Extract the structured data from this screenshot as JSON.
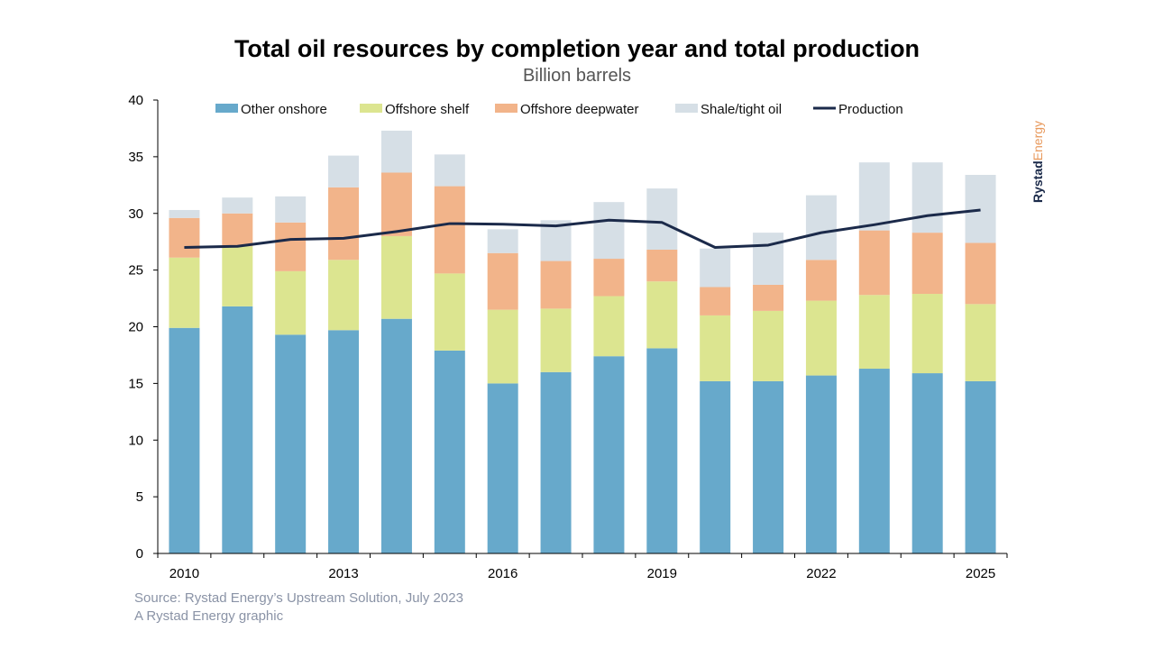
{
  "chart_data": {
    "type": "bar",
    "stacked": true,
    "title": "Total oil resources by completion year and total production",
    "subtitle": "Billion barrels",
    "xlabel": "",
    "ylabel": "",
    "ylim": [
      0,
      40
    ],
    "yticks": [
      0,
      5,
      10,
      15,
      20,
      25,
      30,
      35,
      40
    ],
    "categories": [
      2010,
      2011,
      2012,
      2013,
      2014,
      2015,
      2016,
      2017,
      2018,
      2019,
      2020,
      2021,
      2022,
      2023,
      2024,
      2025
    ],
    "xtick_labels": [
      "2010",
      "2013",
      "2016",
      "2019",
      "2022",
      "2025"
    ],
    "grid": false,
    "legend_position": "top",
    "series": [
      {
        "name": "Other onshore",
        "type": "bar",
        "color": "#67a9cb",
        "values": [
          19.9,
          21.8,
          19.3,
          19.7,
          20.7,
          17.9,
          15.0,
          16.0,
          17.4,
          18.1,
          15.2,
          15.2,
          15.7,
          16.3,
          15.9,
          15.2
        ]
      },
      {
        "name": "Offshore shelf",
        "type": "bar",
        "color": "#dce590",
        "values": [
          6.2,
          5.3,
          5.6,
          6.2,
          7.3,
          6.8,
          6.5,
          5.6,
          5.3,
          5.9,
          5.8,
          6.2,
          6.6,
          6.5,
          7.0,
          6.8
        ]
      },
      {
        "name": "Offshore deepwater",
        "type": "bar",
        "color": "#f2b48a",
        "values": [
          3.5,
          2.9,
          4.3,
          6.4,
          5.6,
          7.7,
          5.0,
          4.2,
          3.3,
          2.8,
          2.5,
          2.3,
          3.6,
          5.7,
          5.4,
          5.4
        ]
      },
      {
        "name": "Shale/tight oil",
        "type": "bar",
        "color": "#d6dfe6",
        "values": [
          0.7,
          1.4,
          2.3,
          2.8,
          3.7,
          2.8,
          2.1,
          3.6,
          5.0,
          5.4,
          3.4,
          4.6,
          5.7,
          6.0,
          6.2,
          6.0
        ]
      },
      {
        "name": "Production",
        "type": "line",
        "color": "#1b2a4a",
        "values": [
          27.0,
          27.1,
          27.7,
          27.8,
          28.4,
          29.1,
          29.05,
          28.9,
          29.4,
          29.2,
          27.0,
          27.2,
          28.3,
          29.0,
          29.8,
          30.3
        ]
      }
    ],
    "source": "Source: Rystad Energy’s Upstream Solution, July 2023",
    "credit": "A Rystad Energy graphic"
  },
  "logo": {
    "part1": "Rystad",
    "part2": "Energy",
    "color1": "#1b2a4a",
    "color2": "#e8995c"
  }
}
